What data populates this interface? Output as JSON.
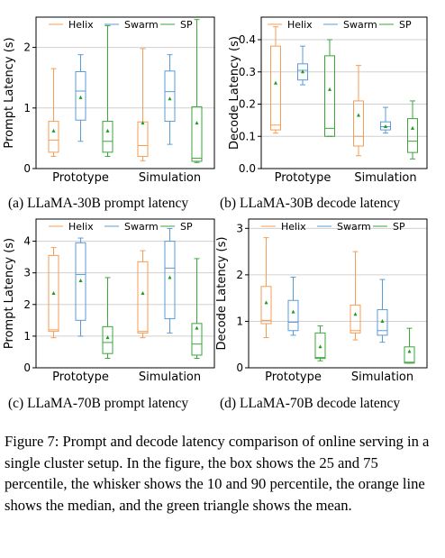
{
  "colors": {
    "Helix": "#f59d54",
    "Swarm": "#5b9bd5",
    "SP": "#3aa63a",
    "mean_marker": "#1a9e1a",
    "grid": "#d0d0d0"
  },
  "subcaptions": {
    "a": "(a) LLaMA-30B prompt latency",
    "b": "(b) LLaMA-30B decode latency",
    "c": "(c) LLaMA-70B prompt latency",
    "d": "(d) LLaMA-70B decode latency"
  },
  "caption": "Figure 7: Prompt and decode latency comparison of online serving in a single cluster setup. In the figure, the box shows the 25 and 75 percentile, the whisker shows the 10 and 90 percentile, the orange line shows the median, and the green triangle shows the mean.",
  "chart_data": [
    {
      "type": "box",
      "ylabel": "Prompt Latency (s)",
      "categories": [
        "Prototype",
        "Simulation"
      ],
      "legend": [
        "Helix",
        "Swarm",
        "SP"
      ],
      "ylim": [
        0,
        2.5
      ],
      "yticks": [
        0,
        1,
        2
      ],
      "series": [
        {
          "name": "Helix",
          "boxes": [
            {
              "p10": 0.2,
              "q1": 0.27,
              "median": 0.47,
              "q3": 0.78,
              "p90": 1.65,
              "mean": 0.62
            },
            {
              "p10": 0.13,
              "q1": 0.2,
              "median": 0.38,
              "q3": 0.77,
              "p90": 1.98,
              "mean": 0.75
            }
          ]
        },
        {
          "name": "Swarm",
          "boxes": [
            {
              "p10": 0.45,
              "q1": 0.8,
              "median": 1.28,
              "q3": 1.6,
              "p90": 1.88,
              "mean": 1.17
            },
            {
              "p10": 0.4,
              "q1": 0.78,
              "median": 1.27,
              "q3": 1.61,
              "p90": 1.88,
              "mean": 1.15
            }
          ]
        },
        {
          "name": "SP",
          "boxes": [
            {
              "p10": 0.2,
              "q1": 0.27,
              "median": 0.45,
              "q3": 0.78,
              "p90": 2.36,
              "mean": 0.62
            },
            {
              "p10": 0.1,
              "q1": 0.12,
              "median": 0.17,
              "q3": 1.02,
              "p90": 2.46,
              "mean": 0.75
            }
          ]
        }
      ]
    },
    {
      "type": "box",
      "ylabel": "Decode Latency (s)",
      "categories": [
        "Prototype",
        "Simulation"
      ],
      "legend": [
        "Helix",
        "Swarm",
        "SP"
      ],
      "ylim": [
        0,
        0.47
      ],
      "yticks": [
        0.0,
        0.1,
        0.2,
        0.3,
        0.4
      ],
      "series": [
        {
          "name": "Helix",
          "boxes": [
            {
              "p10": 0.11,
              "q1": 0.12,
              "median": 0.135,
              "q3": 0.38,
              "p90": 0.44,
              "mean": 0.265
            },
            {
              "p10": 0.04,
              "q1": 0.07,
              "median": 0.1,
              "q3": 0.21,
              "p90": 0.32,
              "mean": 0.165
            }
          ]
        },
        {
          "name": "Swarm",
          "boxes": [
            {
              "p10": 0.26,
              "q1": 0.275,
              "median": 0.305,
              "q3": 0.325,
              "p90": 0.38,
              "mean": 0.3
            },
            {
              "p10": 0.11,
              "q1": 0.12,
              "median": 0.13,
              "q3": 0.145,
              "p90": 0.19,
              "mean": 0.13
            }
          ]
        },
        {
          "name": "SP",
          "boxes": [
            {
              "p10": 0.1,
              "q1": 0.1,
              "median": 0.125,
              "q3": 0.35,
              "p90": 0.4,
              "mean": 0.245
            },
            {
              "p10": 0.03,
              "q1": 0.05,
              "median": 0.085,
              "q3": 0.155,
              "p90": 0.21,
              "mean": 0.125
            }
          ]
        }
      ]
    },
    {
      "type": "box",
      "ylabel": "Prompt Latency (s)",
      "categories": [
        "Prototype",
        "Simulation"
      ],
      "legend": [
        "Helix",
        "Swarm",
        "SP"
      ],
      "ylim": [
        0,
        4.7
      ],
      "yticks": [
        0,
        1,
        2,
        3,
        4
      ],
      "series": [
        {
          "name": "Helix",
          "boxes": [
            {
              "p10": 0.95,
              "q1": 1.15,
              "median": 1.2,
              "q3": 3.55,
              "p90": 3.8,
              "mean": 2.35
            },
            {
              "p10": 0.95,
              "q1": 1.1,
              "median": 1.15,
              "q3": 3.35,
              "p90": 3.7,
              "mean": 2.35
            }
          ]
        },
        {
          "name": "Swarm",
          "boxes": [
            {
              "p10": 1.0,
              "q1": 1.5,
              "median": 2.95,
              "q3": 3.95,
              "p90": 4.1,
              "mean": 2.75
            },
            {
              "p10": 1.1,
              "q1": 1.55,
              "median": 3.15,
              "q3": 4.0,
              "p90": 4.4,
              "mean": 2.85
            }
          ]
        },
        {
          "name": "SP",
          "boxes": [
            {
              "p10": 0.3,
              "q1": 0.45,
              "median": 0.8,
              "q3": 1.3,
              "p90": 2.85,
              "mean": 0.95
            },
            {
              "p10": 0.3,
              "q1": 0.4,
              "median": 0.75,
              "q3": 1.4,
              "p90": 3.45,
              "mean": 1.25
            }
          ]
        }
      ]
    },
    {
      "type": "box",
      "ylabel": "Decode Latency (s)",
      "categories": [
        "Prototype",
        "Simulation"
      ],
      "legend": [
        "Helix",
        "Swarm",
        "SP"
      ],
      "ylim": [
        0,
        3.2
      ],
      "yticks": [
        0,
        1,
        2,
        3
      ],
      "series": [
        {
          "name": "Helix",
          "boxes": [
            {
              "p10": 0.65,
              "q1": 0.95,
              "median": 1.02,
              "q3": 1.75,
              "p90": 2.8,
              "mean": 1.4
            },
            {
              "p10": 0.6,
              "q1": 0.75,
              "median": 0.8,
              "q3": 1.35,
              "p90": 2.5,
              "mean": 1.15
            }
          ]
        },
        {
          "name": "Swarm",
          "boxes": [
            {
              "p10": 0.7,
              "q1": 0.8,
              "median": 0.98,
              "q3": 1.45,
              "p90": 1.95,
              "mean": 1.2
            },
            {
              "p10": 0.55,
              "q1": 0.7,
              "median": 0.8,
              "q3": 1.25,
              "p90": 1.9,
              "mean": 1.0
            }
          ]
        },
        {
          "name": "SP",
          "boxes": [
            {
              "p10": 0.15,
              "q1": 0.2,
              "median": 0.22,
              "q3": 0.75,
              "p90": 0.9,
              "mean": 0.45
            },
            {
              "p10": 0.1,
              "q1": 0.1,
              "median": 0.12,
              "q3": 0.45,
              "p90": 0.85,
              "mean": 0.35
            }
          ]
        }
      ]
    }
  ]
}
